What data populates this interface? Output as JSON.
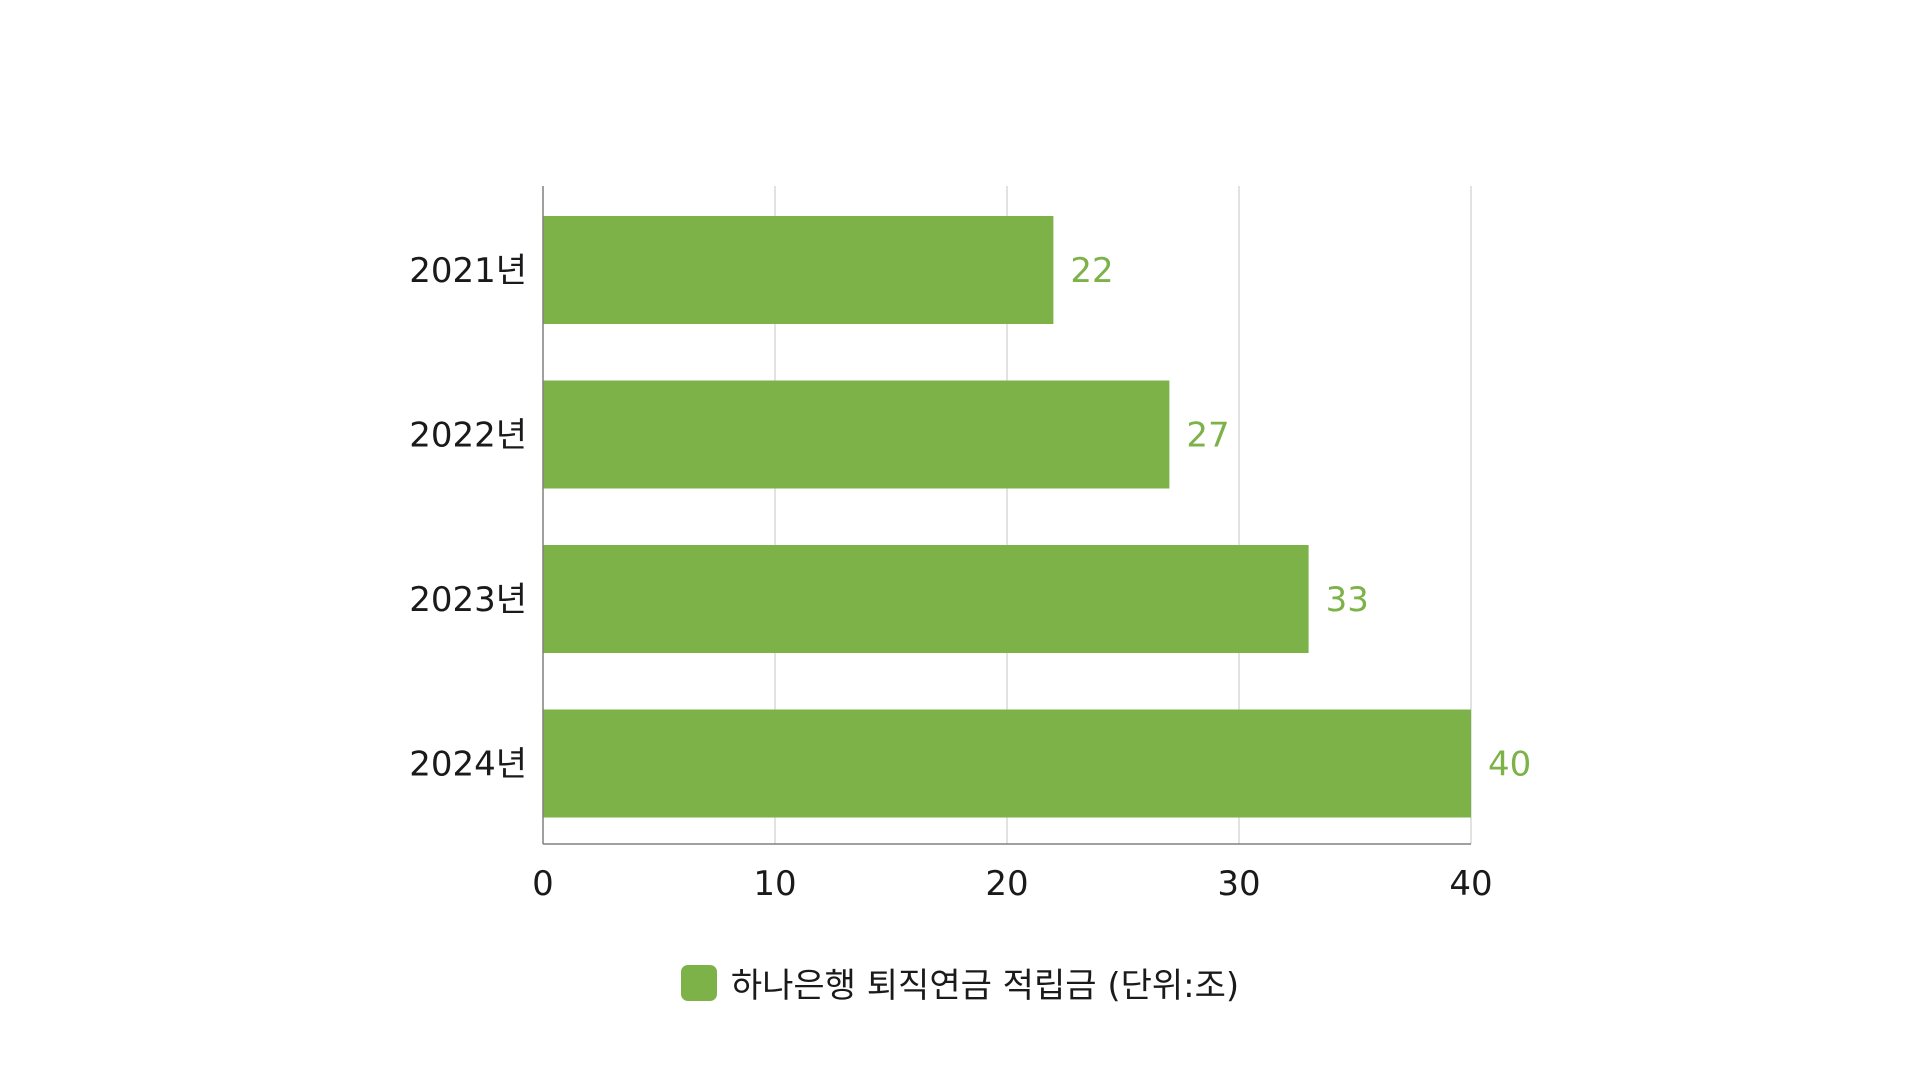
{
  "chart_data": {
    "type": "bar",
    "orientation": "horizontal",
    "categories": [
      "2021년",
      "2022년",
      "2023년",
      "2024년"
    ],
    "series": [
      {
        "name": "하나은행 퇴직연금 적립금 (단위:조)",
        "values": [
          22,
          27,
          33,
          40
        ],
        "color": "#7db249"
      }
    ],
    "xlim": [
      0,
      40
    ],
    "xticks": [
      0,
      10,
      20,
      30,
      40
    ],
    "grid": true,
    "legend_position": "bottom",
    "data_label_color": "#7db249"
  }
}
